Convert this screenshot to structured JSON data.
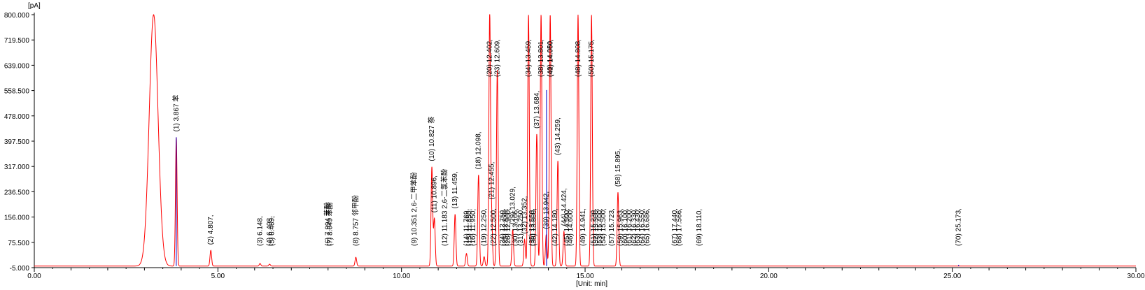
{
  "chart_data": {
    "type": "line",
    "title": "",
    "y_unit_label": "[pA]",
    "x_unit_label": "[Unit: min]",
    "xlim": [
      0,
      30
    ],
    "ylim": [
      -5,
      800
    ],
    "x_ticks": [
      "0.00",
      "5.00",
      "10.00",
      "15.00",
      "20.00",
      "25.00",
      "30.00"
    ],
    "y_ticks": [
      "800.000",
      "719.500",
      "639.000",
      "558.500",
      "478.000",
      "397.500",
      "317.000",
      "236.500",
      "156.000",
      "75.500",
      "-5.000"
    ],
    "x_tick_values": [
      0,
      5,
      10,
      15,
      20,
      25,
      30
    ],
    "y_tick_values": [
      800,
      719.5,
      639,
      558.5,
      478,
      397.5,
      317,
      236.5,
      156,
      75.5,
      -5
    ],
    "grid": false,
    "colors": {
      "signal": "#ff0000",
      "marker": "#0000cc",
      "axis": "#000000"
    },
    "series": [
      {
        "peaks": [
          {
            "rt": 3.25,
            "height": 800,
            "width": 0.12
          },
          {
            "rt": 3.867,
            "height": 410
          },
          {
            "rt": 4.807,
            "height": 50
          },
          {
            "rt": 6.148,
            "height": 8
          },
          {
            "rt": 6.408,
            "height": 6
          },
          {
            "rt": 8.757,
            "height": 28
          },
          {
            "rt": 10.827,
            "height": 315
          },
          {
            "rt": 10.896,
            "height": 150
          },
          {
            "rt": 11.459,
            "height": 165
          },
          {
            "rt": 11.769,
            "height": 40
          },
          {
            "rt": 12.098,
            "height": 290
          },
          {
            "rt": 12.25,
            "height": 30
          },
          {
            "rt": 12.402,
            "height": 800
          },
          {
            "rt": 12.455,
            "height": 150
          },
          {
            "rt": 12.609,
            "height": 625
          },
          {
            "rt": 13.029,
            "height": 115
          },
          {
            "rt": 13.352,
            "height": 85
          },
          {
            "rt": 13.459,
            "height": 800
          },
          {
            "rt": 13.684,
            "height": 420
          },
          {
            "rt": 13.801,
            "height": 800
          },
          {
            "rt": 13.942,
            "height": 100
          },
          {
            "rt": 14.05,
            "height": 800
          },
          {
            "rt": 14.259,
            "height": 335
          },
          {
            "rt": 14.424,
            "height": 110
          },
          {
            "rt": 14.808,
            "height": 800
          },
          {
            "rt": 15.175,
            "height": 800
          },
          {
            "rt": 15.895,
            "height": 235
          }
        ]
      }
    ],
    "peak_labels": [
      {
        "rt": 3.867,
        "text": "(1) 3.867 苯"
      },
      {
        "rt": 4.807,
        "text": "(2) 4.807,"
      },
      {
        "rt": 6.148,
        "text": "(3) 6.148,"
      },
      {
        "rt": 6.408,
        "text": "(4) 6.408,"
      },
      {
        "rt": 6.469,
        "text": "(5) 6.469,"
      },
      {
        "rt": 7.994,
        "text": "(6) 7.994 苯酚"
      },
      {
        "rt": 8.049,
        "text": "(7) 8.049 苯酚"
      },
      {
        "rt": 8.757,
        "text": "(8) 8.757 邻甲酚"
      },
      {
        "rt": 10.351,
        "text": "(9) 10.351 2,6-二甲苯酚"
      },
      {
        "rt": 10.827,
        "text": "(10) 10.827 萘"
      },
      {
        "rt": 10.896,
        "text": "(11) 10.896,"
      },
      {
        "rt": 11.183,
        "text": "(12) 11.183 2,6-二氯苯酚"
      },
      {
        "rt": 11.459,
        "text": "(13) 11.459,"
      },
      {
        "rt": 11.769,
        "text": "(14) 11.769,"
      },
      {
        "rt": 11.85,
        "text": "(15) 11.850,"
      },
      {
        "rt": 11.95,
        "text": "(16) 11.950,"
      },
      {
        "rt": 12.098,
        "text": "(18) 12.098,"
      },
      {
        "rt": 12.25,
        "text": "(19) 12.250,"
      },
      {
        "rt": 12.402,
        "text": "(20) 12.402,"
      },
      {
        "rt": 12.455,
        "text": "(21) 12.455,"
      },
      {
        "rt": 12.5,
        "text": "(22) 12.500,"
      },
      {
        "rt": 12.609,
        "text": "(23) 12.609,"
      },
      {
        "rt": 12.75,
        "text": "(24) 12.750,"
      },
      {
        "rt": 12.83,
        "text": "(25) 12.830,"
      },
      {
        "rt": 12.9,
        "text": "(26) 12.900,"
      },
      {
        "rt": 13.029,
        "text": "(29) 13.029,"
      },
      {
        "rt": 13.105,
        "text": "(30) 13.105,"
      },
      {
        "rt": 13.25,
        "text": "(31) 13.250,"
      },
      {
        "rt": 13.352,
        "text": "(32) 13.352,"
      },
      {
        "rt": 13.459,
        "text": "(34) 13.459,"
      },
      {
        "rt": 13.55,
        "text": "(35) 13.550,"
      },
      {
        "rt": 13.6,
        "text": "(36) 13.600,"
      },
      {
        "rt": 13.684,
        "text": "(37) 13.684,"
      },
      {
        "rt": 13.801,
        "text": "(38) 13.801,"
      },
      {
        "rt": 13.942,
        "text": "(39) 13.942,"
      },
      {
        "rt": 14.05,
        "text": "(40) 14.050,"
      },
      {
        "rt": 14.06,
        "text": "(41) 14.060,"
      },
      {
        "rt": 14.18,
        "text": "(42) 14.180,"
      },
      {
        "rt": 14.259,
        "text": "(43) 14.259,"
      },
      {
        "rt": 14.424,
        "text": "(44) 14.424,"
      },
      {
        "rt": 14.5,
        "text": "(45) 14.500,"
      },
      {
        "rt": 14.6,
        "text": "(46) 14.600,"
      },
      {
        "rt": 14.808,
        "text": "(48) 14.808,"
      },
      {
        "rt": 14.941,
        "text": "(49) 14.941,"
      },
      {
        "rt": 15.175,
        "text": "(50) 15.175,"
      },
      {
        "rt": 15.23,
        "text": "(51) 15.230,"
      },
      {
        "rt": 15.3,
        "text": "(52) 15.300,"
      },
      {
        "rt": 15.4,
        "text": "(53) 15.400,"
      },
      {
        "rt": 15.5,
        "text": "(54) 15.500,"
      },
      {
        "rt": 15.723,
        "text": "(57) 15.723,"
      },
      {
        "rt": 15.895,
        "text": "(58) 15.895,"
      },
      {
        "rt": 15.963,
        "text": "(59) 15.963,"
      },
      {
        "rt": 16.1,
        "text": "(60) 16.100,"
      },
      {
        "rt": 16.2,
        "text": "(61) 16.200,"
      },
      {
        "rt": 16.33,
        "text": "(62) 16.330,"
      },
      {
        "rt": 16.43,
        "text": "(63) 16.430,"
      },
      {
        "rt": 16.55,
        "text": "(64) 16.550,"
      },
      {
        "rt": 16.686,
        "text": "(65) 16.686,"
      },
      {
        "rt": 17.44,
        "text": "(67) 17.440,"
      },
      {
        "rt": 17.566,
        "text": "(68) 17.566,"
      },
      {
        "rt": 18.11,
        "text": "(69) 18.110,"
      },
      {
        "rt": 25.173,
        "text": "(70) 25.173,"
      }
    ],
    "markers": [
      {
        "rt": 3.867,
        "height": 410
      },
      {
        "rt": 13.95,
        "height": 560
      },
      {
        "rt": 25.173,
        "height": 4
      }
    ]
  }
}
